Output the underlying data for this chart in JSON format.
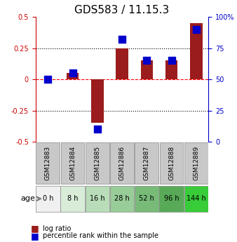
{
  "title": "GDS583 / 11.15.3",
  "samples": [
    "GSM12883",
    "GSM12884",
    "GSM12885",
    "GSM12886",
    "GSM12887",
    "GSM12888",
    "GSM12889"
  ],
  "ages": [
    "0 h",
    "8 h",
    "16 h",
    "28 h",
    "52 h",
    "96 h",
    "144 h"
  ],
  "log_ratios": [
    0.0,
    0.05,
    -0.35,
    0.25,
    0.15,
    0.15,
    0.45
  ],
  "percentile_ranks": [
    50,
    55,
    10,
    82,
    65,
    65,
    90
  ],
  "bar_color": "#9B1C1C",
  "dot_color": "#0000CC",
  "ylim_left": [
    -0.5,
    0.5
  ],
  "ylim_right": [
    0,
    100
  ],
  "yticks_left": [
    -0.5,
    -0.25,
    0,
    0.25,
    0.5
  ],
  "yticks_right": [
    0,
    25,
    50,
    75,
    100
  ],
  "ytick_labels_right": [
    "0",
    "25",
    "50",
    "75",
    "100%"
  ],
  "hlines": [
    0.25,
    0,
    -0.25
  ],
  "hline_styles": [
    "dotted",
    "dashed",
    "dotted"
  ],
  "hline_colors": [
    "black",
    "red",
    "black"
  ],
  "age_colors": [
    "#f0f0f0",
    "#d8ecd8",
    "#b8ddb8",
    "#98cc98",
    "#78bb78",
    "#58aa58",
    "#38cc38"
  ],
  "bar_width": 0.5,
  "dot_size": 60,
  "background_color": "#ffffff",
  "grid_color": "#cccccc",
  "left_axis_color": "#CC0000",
  "right_axis_color": "#0000CC"
}
